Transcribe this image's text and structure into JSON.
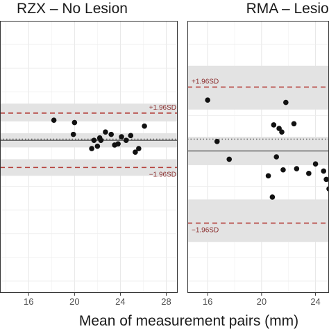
{
  "chart_data": [
    {
      "type": "scatter",
      "title": "RZX – No Lesion",
      "xlabel": "Mean of measurement pairs (mm)",
      "xlim": [
        13.5,
        29
      ],
      "x_ticks": [
        "16",
        "20",
        "24",
        "28"
      ],
      "ylim": [
        -1.3,
        1.0
      ],
      "grid": true,
      "colors": {
        "points": "#111111",
        "sd_lines": "#b5413c",
        "bands": "#e3e3e3",
        "mean_line": "#444444"
      },
      "lines": {
        "upper_sd": 0.22,
        "mean": -0.01,
        "zero": 0.0,
        "lower_sd": -0.24
      },
      "bands": {
        "upper_sd": [
          0.15,
          0.3
        ],
        "mean": [
          -0.07,
          0.05
        ],
        "lower_sd": [
          -0.31,
          -0.17
        ]
      },
      "labels": {
        "upper_sd": "+1.96SD",
        "lower_sd": "−1.96SD"
      },
      "x": [
        18.2,
        20.0,
        19.9,
        21.5,
        21.7,
        22.0,
        22.2,
        22.3,
        22.7,
        23.2,
        23.5,
        23.8,
        24.1,
        24.5,
        24.9,
        25.3,
        25.6,
        26.1
      ],
      "y": [
        0.16,
        0.14,
        0.04,
        -0.08,
        -0.01,
        -0.06,
        0.01,
        -0.01,
        0.06,
        0.04,
        -0.05,
        -0.04,
        0.02,
        -0.01,
        0.03,
        -0.11,
        -0.08,
        0.11
      ]
    },
    {
      "type": "scatter",
      "title": "RMA – Lesion",
      "xlabel": "Mean of measurement pairs (mm)",
      "xlim": [
        14.5,
        25
      ],
      "x_ticks": [
        "16",
        "20",
        "24"
      ],
      "ylim": [
        -1.3,
        1.0
      ],
      "grid": true,
      "colors": {
        "points": "#111111",
        "sd_lines": "#b5413c",
        "bands": "#e3e3e3",
        "mean_line": "#444444"
      },
      "lines": {
        "upper_sd": 0.44,
        "mean": -0.1,
        "zero": 0.0,
        "lower_sd": -0.71
      },
      "bands": {
        "upper_sd": [
          0.25,
          0.62
        ],
        "mean": [
          -0.22,
          0.02
        ],
        "lower_sd": [
          -0.87,
          -0.51
        ]
      },
      "labels": {
        "upper_sd": "+1.96SD",
        "lower_sd": "−1.96SD"
      },
      "x": [
        16.0,
        16.7,
        17.6,
        20.5,
        20.8,
        20.9,
        21.1,
        21.3,
        21.5,
        21.6,
        21.8,
        22.4,
        22.6,
        23.5,
        24.0,
        24.6,
        24.8,
        25.0
      ],
      "y": [
        0.33,
        -0.02,
        -0.17,
        -0.31,
        -0.49,
        0.12,
        -0.15,
        0.09,
        0.06,
        -0.26,
        0.31,
        0.13,
        -0.25,
        -0.29,
        -0.21,
        -0.27,
        -0.34,
        -0.42
      ]
    }
  ]
}
